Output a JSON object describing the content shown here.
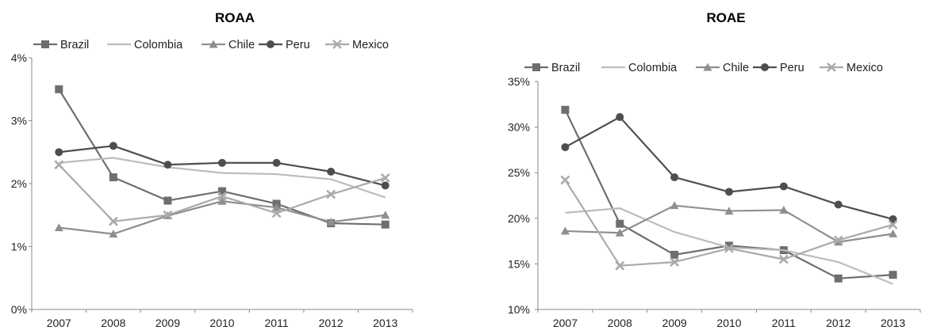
{
  "chart_data": [
    {
      "type": "line",
      "title": "ROAA",
      "categories": [
        "2007",
        "2008",
        "2009",
        "2010",
        "2011",
        "2012",
        "2013"
      ],
      "ylim": [
        0,
        4
      ],
      "yticks": [
        "0%",
        "1%",
        "2%",
        "3%",
        "4%"
      ],
      "ytick_values": [
        0,
        1,
        2,
        3,
        4
      ],
      "legend_position": "top",
      "grid": false,
      "series": [
        {
          "name": "Brazil",
          "marker": "square",
          "color": "#6e6e6e",
          "values": [
            3.5,
            2.1,
            1.73,
            1.88,
            1.68,
            1.37,
            1.35
          ]
        },
        {
          "name": "Colombia",
          "marker": "none",
          "color": "#bcbcbc",
          "values": [
            2.33,
            2.41,
            2.26,
            2.17,
            2.15,
            2.07,
            1.78
          ]
        },
        {
          "name": "Chile",
          "marker": "triangle",
          "color": "#8f8f8f",
          "values": [
            1.3,
            1.2,
            1.49,
            1.72,
            1.62,
            1.39,
            1.5
          ]
        },
        {
          "name": "Peru",
          "marker": "circle",
          "color": "#4e4e4e",
          "values": [
            2.5,
            2.6,
            2.3,
            2.33,
            2.33,
            2.19,
            1.97
          ]
        },
        {
          "name": "Mexico",
          "marker": "x",
          "color": "#aaaaaa",
          "values": [
            2.3,
            1.4,
            1.5,
            1.8,
            1.53,
            1.83,
            2.09
          ]
        }
      ]
    },
    {
      "type": "line",
      "title": "ROAE",
      "categories": [
        "2007",
        "2008",
        "2009",
        "2010",
        "2011",
        "2012",
        "2013"
      ],
      "ylim": [
        10,
        35
      ],
      "yticks": [
        "10%",
        "15%",
        "20%",
        "25%",
        "30%",
        "35%"
      ],
      "ytick_values": [
        10,
        15,
        20,
        25,
        30,
        35
      ],
      "legend_position": "top",
      "grid": false,
      "series": [
        {
          "name": "Brazil",
          "marker": "square",
          "color": "#6e6e6e",
          "values": [
            31.9,
            19.4,
            16.0,
            17.0,
            16.5,
            13.4,
            13.8
          ]
        },
        {
          "name": "Colombia",
          "marker": "none",
          "color": "#bcbcbc",
          "values": [
            20.6,
            21.1,
            18.5,
            16.8,
            16.5,
            15.2,
            12.8
          ]
        },
        {
          "name": "Chile",
          "marker": "triangle",
          "color": "#8f8f8f",
          "values": [
            18.6,
            18.4,
            21.4,
            20.8,
            20.9,
            17.4,
            18.3
          ]
        },
        {
          "name": "Peru",
          "marker": "circle",
          "color": "#4e4e4e",
          "values": [
            27.8,
            31.1,
            24.5,
            22.9,
            23.5,
            21.5,
            19.9
          ]
        },
        {
          "name": "Mexico",
          "marker": "x",
          "color": "#aaaaaa",
          "values": [
            24.2,
            14.8,
            15.2,
            16.7,
            15.5,
            17.6,
            19.3
          ]
        }
      ]
    }
  ]
}
